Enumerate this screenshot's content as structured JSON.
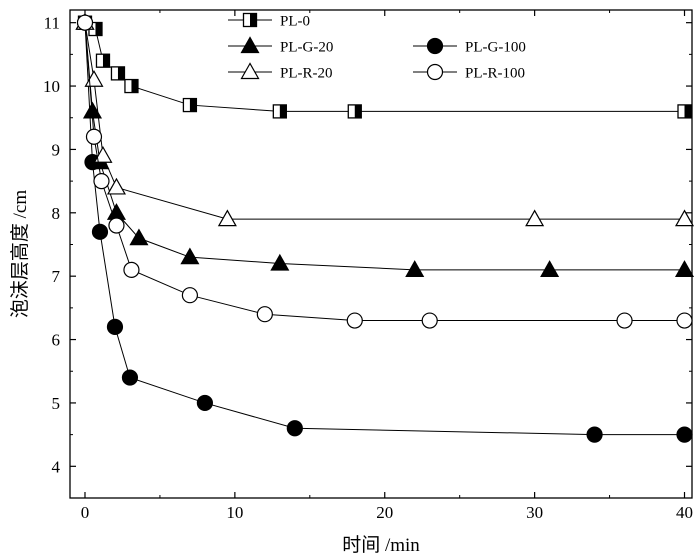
{
  "chart_data": {
    "type": "line",
    "title": "",
    "xlabel": "时间  /min",
    "ylabel": "泡沫层高度  /cm",
    "xlim": [
      -1,
      40.5
    ],
    "ylim": [
      3.5,
      11.2
    ],
    "xticks": [
      0,
      10,
      20,
      30,
      40
    ],
    "yticks": [
      4,
      5,
      6,
      7,
      8,
      9,
      10,
      11
    ],
    "grid": false,
    "legend_position": "top",
    "series": [
      {
        "name": "PL-0",
        "marker": "half-filled-square",
        "x": [
          0,
          0.7,
          1.2,
          2.2,
          3.1,
          7,
          13,
          18,
          40
        ],
        "y": [
          11,
          10.9,
          10.4,
          10.2,
          10.0,
          9.7,
          9.6,
          9.6,
          9.6
        ]
      },
      {
        "name": "PL-G-20",
        "marker": "filled-triangle",
        "x": [
          0,
          0.5,
          1.0,
          2.1,
          3.6,
          7,
          13,
          22,
          31,
          40
        ],
        "y": [
          11,
          9.6,
          8.8,
          8.0,
          7.6,
          7.3,
          7.2,
          7.1,
          7.1,
          7.1
        ]
      },
      {
        "name": "PL-G-100",
        "marker": "filled-circle",
        "x": [
          0,
          0.5,
          1.0,
          2.0,
          3.0,
          8,
          14,
          34,
          40
        ],
        "y": [
          11,
          8.8,
          7.7,
          6.2,
          5.4,
          5.0,
          4.6,
          4.5,
          4.5
        ]
      },
      {
        "name": "PL-R-20",
        "marker": "open-triangle",
        "x": [
          0,
          0.6,
          1.2,
          2.1,
          9.5,
          30,
          40
        ],
        "y": [
          11,
          10.1,
          8.9,
          8.4,
          7.9,
          7.9,
          7.9
        ]
      },
      {
        "name": "PL-R-100",
        "marker": "open-circle",
        "x": [
          0,
          0.6,
          1.1,
          2.1,
          3.1,
          7,
          12,
          18,
          23,
          36,
          40
        ],
        "y": [
          11,
          9.2,
          8.5,
          7.8,
          7.1,
          6.7,
          6.4,
          6.3,
          6.3,
          6.3,
          6.3
        ]
      }
    ]
  }
}
